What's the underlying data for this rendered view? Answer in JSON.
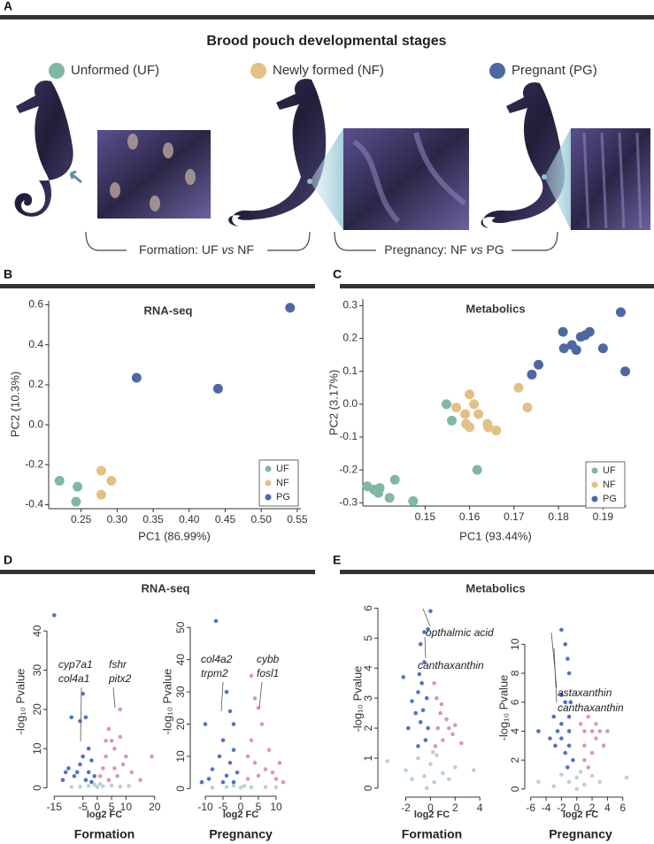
{
  "panel_labels": [
    "A",
    "B",
    "C",
    "D",
    "E"
  ],
  "figure_a": {
    "title": "Brood pouch developmental stages",
    "stages": [
      {
        "label": "Unformed (UF)",
        "color": "#7fb8a3"
      },
      {
        "label": "Newly formed (NF)",
        "color": "#e2c086"
      },
      {
        "label": "Pregnant (PG)",
        "color": "#4e68a6"
      }
    ],
    "comparisons": [
      {
        "prefix": "Formation: UF",
        "vs": "vs",
        "suffix": "NF"
      },
      {
        "prefix": "Pregnancy: NF",
        "vs": "vs",
        "suffix": "PG"
      }
    ]
  },
  "chart_data": [
    {
      "type": "scatter",
      "title": "RNA-seq",
      "xlabel": "PC1 (86.99%)",
      "ylabel": "PC2 (10.3%)",
      "xlim": [
        0.205,
        0.555
      ],
      "ylim": [
        -0.42,
        0.62
      ],
      "xticks": [
        0.25,
        {
          "value": 0.3,
          "label": "0.30"
        },
        0.35,
        {
          "value": 0.4,
          "label": "0.40"
        },
        0.45,
        {
          "value": 0.5,
          "label": "0.50"
        },
        0.55
      ],
      "yticks": [
        -0.4,
        -0.2,
        {
          "value": 0,
          "label": "0.0"
        },
        0.2,
        0.4,
        0.6
      ],
      "legend": "lower right",
      "series": [
        {
          "name": "UF",
          "color": "#7fb8a3",
          "x": [
            0.22,
            0.245,
            0.243
          ],
          "values": [
            -0.28,
            -0.31,
            -0.385
          ]
        },
        {
          "name": "NF",
          "color": "#e2c086",
          "x": [
            0.278,
            0.292,
            0.278
          ],
          "values": [
            -0.23,
            -0.28,
            -0.35
          ]
        },
        {
          "name": "PG",
          "color": "#4e68a6",
          "x": [
            0.327,
            0.44,
            0.54
          ],
          "values": [
            0.235,
            0.18,
            0.585
          ]
        }
      ]
    },
    {
      "type": "scatter",
      "title": "Metabolics",
      "xlabel": "PC1 (93.44%)",
      "ylabel": "PC2 (3.17%)",
      "xlim": [
        0.136,
        0.1953
      ],
      "ylim": [
        -0.31,
        0.32
      ],
      "xticks": [
        0.15,
        0.16,
        0.17,
        0.18,
        0.19
      ],
      "yticks": [
        -0.3,
        -0.2,
        -0.1,
        {
          "value": 0,
          "label": "0.0"
        },
        0.1,
        0.2,
        0.3
      ],
      "legend": "lower right",
      "series": [
        {
          "name": "UF",
          "color": "#7fb8a3",
          "x": [
            0.137,
            0.1385,
            0.1398,
            0.1395,
            0.142,
            0.1432,
            0.1473,
            0.1617,
            0.1548,
            0.156
          ],
          "values": [
            -0.25,
            -0.26,
            -0.255,
            -0.27,
            -0.285,
            -0.23,
            -0.295,
            -0.2,
            0.0,
            -0.05
          ]
        },
        {
          "name": "NF",
          "color": "#e2c086",
          "x": [
            0.157,
            0.159,
            0.16,
            0.161,
            0.1592,
            0.16,
            0.162,
            0.164,
            0.1642,
            0.166,
            0.171,
            0.173
          ],
          "values": [
            -0.01,
            -0.03,
            0.03,
            0.0,
            -0.06,
            -0.07,
            -0.03,
            -0.06,
            -0.07,
            -0.08,
            0.05,
            -0.01
          ]
        },
        {
          "name": "PG",
          "color": "#4e68a6",
          "x": [
            0.174,
            0.1755,
            0.181,
            0.1812,
            0.183,
            0.184,
            0.185,
            0.186,
            0.187,
            0.19,
            0.194,
            0.195
          ],
          "values": [
            0.09,
            0.12,
            0.22,
            0.17,
            0.18,
            0.165,
            0.205,
            0.21,
            0.22,
            0.17,
            0.28,
            0.1
          ]
        }
      ]
    },
    {
      "type": "scatter",
      "title": "RNA-seq",
      "xlabel": "log2 FC",
      "ylabel": "-log₁₀ Pvalue",
      "caption": "Formation",
      "xlim": [
        -16,
        21
      ],
      "ylim": [
        -1,
        45
      ],
      "xticks": [
        -15,
        -5,
        0,
        5,
        10,
        20
      ],
      "yticks": [
        0,
        10,
        20,
        30,
        40
      ],
      "annotations": [
        "cyp7a1",
        "col4a1",
        "fshr",
        "pitx2"
      ],
      "series": [
        {
          "color": "#b9d1d8",
          "x": [
            -6,
            -3,
            0,
            2,
            5,
            -1,
            8,
            -9,
            11,
            1
          ],
          "values": [
            0.3,
            0.5,
            0.2,
            0.4,
            0.6,
            0.8,
            0.3,
            0.2,
            0.5,
            1
          ]
        },
        {
          "color": "#4f74c8",
          "x": [
            -15,
            -9,
            -6,
            -4,
            -5,
            -10,
            -8,
            -12,
            -6,
            -3,
            -2,
            -4,
            -7,
            -1,
            -2,
            -11,
            -3,
            -5
          ],
          "values": [
            44,
            18,
            17,
            18,
            24,
            5,
            3,
            2,
            6,
            4,
            7,
            2,
            4,
            3,
            1.5,
            4,
            10,
            8
          ]
        },
        {
          "color": "#dc9aa2",
          "x": [
            8,
            4,
            5,
            6,
            3,
            2,
            9,
            12,
            7,
            4,
            1,
            10,
            6,
            15,
            19,
            3,
            8
          ],
          "values": [
            20,
            15,
            12,
            10,
            8,
            5,
            6,
            4,
            3,
            2,
            3,
            8,
            5,
            2,
            8,
            12,
            13
          ]
        }
      ]
    },
    {
      "type": "scatter",
      "xlabel": "log2 FC",
      "ylabel": "-log₁₀ Pvalue",
      "caption": "Pregnancy",
      "xlim": [
        -13,
        13
      ],
      "ylim": [
        -1,
        55
      ],
      "xticks": [
        -10,
        -5,
        0,
        5,
        10
      ],
      "yticks": [
        0,
        10,
        20,
        30,
        40,
        50
      ],
      "annotations": [
        "col4a2",
        "trpm2",
        "cybb",
        "fosl1"
      ],
      "series": [
        {
          "color": "#b9d1d8",
          "x": [
            -4,
            0,
            3,
            -8,
            7,
            1,
            -2,
            10
          ],
          "values": [
            0.5,
            0.3,
            0.4,
            0.3,
            0.5,
            0.8,
            0.9,
            0.4
          ]
        },
        {
          "color": "#4f74c8",
          "x": [
            -10,
            -7,
            -4,
            -3,
            -2,
            -5,
            -6,
            -8,
            -3,
            -2,
            -1,
            -4,
            -9,
            -11,
            -5,
            -2
          ],
          "values": [
            20,
            52,
            30,
            24,
            20,
            15,
            10,
            6,
            8,
            12,
            5,
            4,
            3,
            2,
            2,
            2
          ]
        },
        {
          "color": "#dc9aa2",
          "x": [
            3,
            4,
            5,
            6,
            2,
            3,
            4,
            7,
            9,
            10,
            11,
            12,
            5,
            2,
            8
          ],
          "values": [
            35,
            28,
            25,
            20,
            10,
            15,
            8,
            6,
            5,
            3,
            8,
            2,
            4,
            3,
            12
          ]
        }
      ]
    },
    {
      "type": "scatter",
      "title": "Metabolics",
      "xlabel": "log2 FC",
      "ylabel": "-log₁₀ Pvalue",
      "caption": "Formation",
      "xlim": [
        -3.9,
        4.2
      ],
      "ylim": [
        -0.15,
        6.1
      ],
      "xticks": [
        -2,
        0,
        2,
        4
      ],
      "yticks": [
        0,
        1,
        2,
        3,
        4,
        5,
        6
      ],
      "annotations": [
        "opthalmic acid",
        "canthaxanthin"
      ],
      "series": [
        {
          "color": "#b9d1d8",
          "x": [
            -3.5,
            -2,
            -1,
            -0.5,
            0,
            0.3,
            0.5,
            1,
            2,
            3.5,
            -0.3,
            0.2,
            -1.5,
            1.5
          ],
          "values": [
            0.9,
            0.6,
            1.0,
            0.4,
            0.8,
            0.2,
            1.1,
            0.5,
            0.7,
            0.6,
            0,
            1.2,
            0.3,
            0.3
          ]
        },
        {
          "color": "#4f74c8",
          "x": [
            0,
            -0.2,
            -0.5,
            -0.8,
            -2.2,
            -0.9,
            -0.5,
            -1,
            -0.3,
            -0.6,
            -1.2,
            -0.8,
            -0.2,
            -1.5,
            -0.4,
            -1,
            -0.7,
            -1.8
          ],
          "values": [
            5.9,
            5.3,
            5.2,
            4.8,
            3.7,
            3.8,
            4.2,
            3.2,
            3.0,
            2.6,
            2.5,
            2.2,
            2.0,
            2.9,
            1.6,
            1.4,
            3.5,
            2.0
          ]
        },
        {
          "color": "#dc9aa2",
          "x": [
            0.3,
            0.5,
            0.9,
            1.3,
            0.6,
            2,
            1.0,
            0.4,
            1.8,
            2.5,
            0.8,
            1.5
          ],
          "values": [
            3.5,
            3.0,
            2.8,
            2.3,
            2.0,
            2.1,
            1.6,
            1.4,
            1.8,
            1.5,
            2.5,
            2.0
          ]
        }
      ]
    },
    {
      "type": "scatter",
      "xlabel": "log2 FC",
      "ylabel": "-log₁₀ Pvalue",
      "caption": "Pregnancy",
      "xlim": [
        -6.2,
        7.3
      ],
      "ylim": [
        -0.25,
        11.3
      ],
      "xticks": [
        -6,
        -4,
        -2,
        0,
        2,
        4,
        6
      ],
      "yticks": [
        0,
        2,
        4,
        6,
        8,
        10
      ],
      "annotations": [
        "astaxanthin",
        "canthaxanthin"
      ],
      "series": [
        {
          "color": "#b9d1d8",
          "x": [
            -5,
            -2,
            -1,
            0,
            0.5,
            1,
            2,
            3,
            6.5,
            -3,
            0
          ],
          "values": [
            0.5,
            1,
            0.5,
            0.8,
            1.2,
            0.3,
            0.9,
            0.5,
            0.8,
            0.2,
            0
          ]
        },
        {
          "color": "#4f74c8",
          "x": [
            -2,
            -1.5,
            -1.2,
            -1,
            -2,
            -1.5,
            -3,
            -2,
            -1,
            -2.5,
            -1,
            -3.5,
            -2,
            -1,
            -1.5,
            -0.5,
            -1.2,
            -5,
            -2.8,
            -0.8
          ],
          "values": [
            11,
            10,
            9,
            8,
            6.5,
            6,
            5,
            4.5,
            5,
            4,
            4,
            3.5,
            3.5,
            3,
            2.5,
            2,
            1.5,
            4,
            3,
            6
          ]
        },
        {
          "color": "#dc9aa2",
          "x": [
            0.5,
            1,
            1.5,
            2,
            2.5,
            3,
            1,
            2,
            3.5,
            1.5,
            2.5,
            1,
            4
          ],
          "values": [
            4.5,
            4,
            5,
            4,
            3.5,
            4,
            3,
            2.5,
            3,
            1.5,
            4.5,
            2,
            4
          ]
        }
      ]
    }
  ]
}
